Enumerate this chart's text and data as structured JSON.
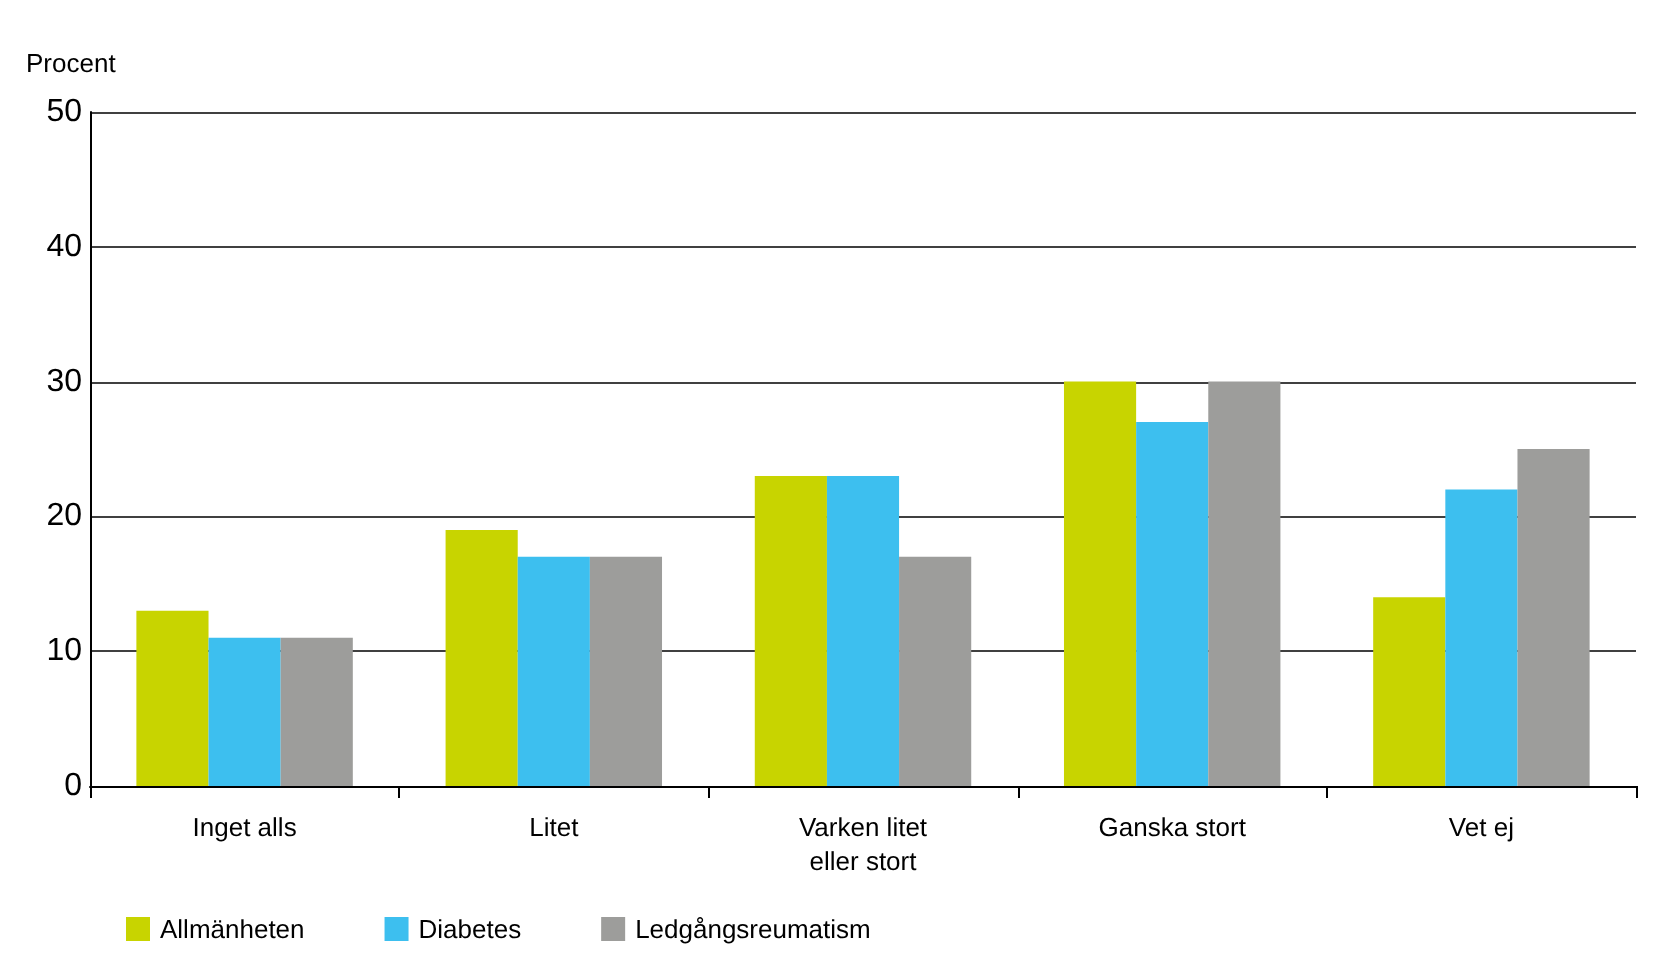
{
  "chart_data": {
    "type": "bar",
    "ylabel": "Procent",
    "categories": [
      "Inget alls",
      "Litet",
      "Varken litet\neller stort",
      "Ganska stort",
      "Vet ej"
    ],
    "series": [
      {
        "name": "Allmänheten",
        "color": "#c8d400",
        "values": [
          13,
          19,
          23,
          30,
          14
        ]
      },
      {
        "name": "Diabetes",
        "color": "#3dbfef",
        "values": [
          11,
          17,
          23,
          27,
          22
        ]
      },
      {
        "name": "Ledgångsreumatism",
        "color": "#9d9d9b",
        "values": [
          11,
          17,
          17,
          30,
          25
        ]
      }
    ],
    "ylim": [
      0,
      50
    ],
    "yticks": [
      0,
      10,
      20,
      30,
      40,
      50
    ],
    "grid": "y",
    "legend": "bottom left"
  }
}
